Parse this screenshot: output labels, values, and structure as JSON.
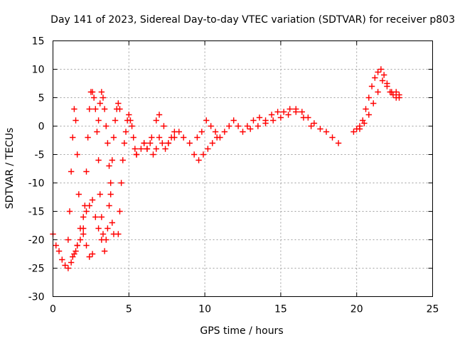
{
  "chart_data": {
    "type": "scatter",
    "title": "Day 141 of 2023, Sidereal Day-to-day VTEC variation (SDTVAR) for receiver p803",
    "xlabel": "GPS time / hours",
    "ylabel": "SDTVAR / TECUs",
    "xlim": [
      0,
      25
    ],
    "ylim": [
      -30,
      15
    ],
    "xticks": [
      "0",
      "5",
      "10",
      "15",
      "20",
      "25"
    ],
    "yticks": [
      "-30",
      "-25",
      "-20",
      "-15",
      "-10",
      "-5",
      "0",
      "5",
      "10",
      "15"
    ],
    "grid": true,
    "marker": "+",
    "color": "#ff0000",
    "series": [
      {
        "name": "SDTVAR",
        "x": [
          0.0,
          0.2,
          0.4,
          0.6,
          0.8,
          1.0,
          1.2,
          1.3,
          1.4,
          1.5,
          1.6,
          1.8,
          2.0,
          2.2,
          2.4,
          2.6,
          1.0,
          1.1,
          1.2,
          1.3,
          1.4,
          1.5,
          1.6,
          1.7,
          2.0,
          2.1,
          2.2,
          2.3,
          2.4,
          2.5,
          2.6,
          2.7,
          2.8,
          2.9,
          3.0,
          3.1,
          3.2,
          3.3,
          3.4,
          3.5,
          1.6,
          1.8,
          2.0,
          2.2,
          2.4,
          2.6,
          2.8,
          3.0,
          3.2,
          3.0,
          3.1,
          3.2,
          3.3,
          3.4,
          3.5,
          3.6,
          3.7,
          3.8,
          3.9,
          4.0,
          3.6,
          3.7,
          3.8,
          3.9,
          4.0,
          4.1,
          4.2,
          4.3,
          4.4,
          4.3,
          4.4,
          4.5,
          4.6,
          4.7,
          4.8,
          4.9,
          5.0,
          5.1,
          5.2,
          5.3,
          5.4,
          5.5,
          5.5,
          5.8,
          6.0,
          6.2,
          6.5,
          6.8,
          7.0,
          7.3,
          7.6,
          8.0,
          8.3,
          8.6,
          6.0,
          6.2,
          6.4,
          6.6,
          6.8,
          7.0,
          7.2,
          7.4,
          7.6,
          7.8,
          8.0,
          9.0,
          9.3,
          9.6,
          9.9,
          10.2,
          10.5,
          10.8,
          9.5,
          9.8,
          10.1,
          10.4,
          10.7,
          11.0,
          11.3,
          11.6,
          11.9,
          12.2,
          12.5,
          12.8,
          13.2,
          13.6,
          14.0,
          14.4,
          14.8,
          15.2,
          15.6,
          16.0,
          16.4,
          16.8,
          17.2,
          17.6,
          18.0,
          18.4,
          18.8,
          13.0,
          13.5,
          14.0,
          14.5,
          15.0,
          15.5,
          16.0,
          16.5,
          17.0,
          19.8,
          20.0,
          20.2,
          20.4,
          20.6,
          20.8,
          21.0,
          21.2,
          21.4,
          21.6,
          21.8,
          22.0,
          22.2,
          22.4,
          22.6,
          22.8,
          20.2,
          20.5,
          20.8,
          21.1,
          21.4,
          21.7,
          22.0,
          22.3,
          22.6,
          22.8
        ],
        "y": [
          -19,
          -21,
          -22,
          -23.5,
          -24.5,
          -25,
          -24,
          -23,
          -22.5,
          -22,
          -21,
          -20,
          -19,
          -21,
          -23,
          -22.5,
          -20,
          -15,
          -8,
          -2,
          3,
          1,
          -5,
          -12,
          -18,
          -14,
          -8,
          -2,
          3,
          6,
          6,
          5,
          3,
          -1,
          -6,
          -12,
          -16,
          -19,
          -22,
          -20,
          -21,
          -18,
          -16,
          -15,
          -14,
          -13,
          -16,
          -18,
          -20,
          1,
          4,
          6,
          5,
          3,
          0,
          -3,
          -7,
          -12,
          -17,
          -19,
          -18,
          -14,
          -10,
          -6,
          -2,
          1,
          3,
          4,
          3,
          -19,
          -15,
          -10,
          -6,
          -3,
          -1,
          1,
          2,
          1,
          0,
          -2,
          -4,
          -5,
          -5,
          -4,
          -3,
          -4,
          -2,
          1,
          2,
          0,
          -3,
          -2,
          -1,
          -2,
          -3,
          -4,
          -3,
          -5,
          -4,
          -2,
          -3,
          -4,
          -3,
          -2,
          -1,
          -3,
          -5,
          -6,
          -5,
          -4,
          -3,
          -2,
          -2,
          -1,
          1,
          0,
          -1,
          -2,
          -1,
          0,
          1,
          0,
          -1,
          0,
          1,
          1.5,
          1,
          2,
          2.5,
          2.5,
          3,
          3,
          2.5,
          1.5,
          0.5,
          -0.5,
          -1,
          -2,
          -3,
          -0.5,
          0,
          0.5,
          1,
          1.5,
          2,
          2.5,
          1.5,
          0,
          -1,
          -0.5,
          0,
          1,
          3,
          5,
          7,
          8.5,
          9.5,
          10,
          9,
          7.5,
          6,
          5.5,
          6,
          5,
          -0.5,
          0.5,
          2,
          4,
          6,
          8,
          7,
          6,
          5,
          5.5
        ]
      }
    ]
  }
}
